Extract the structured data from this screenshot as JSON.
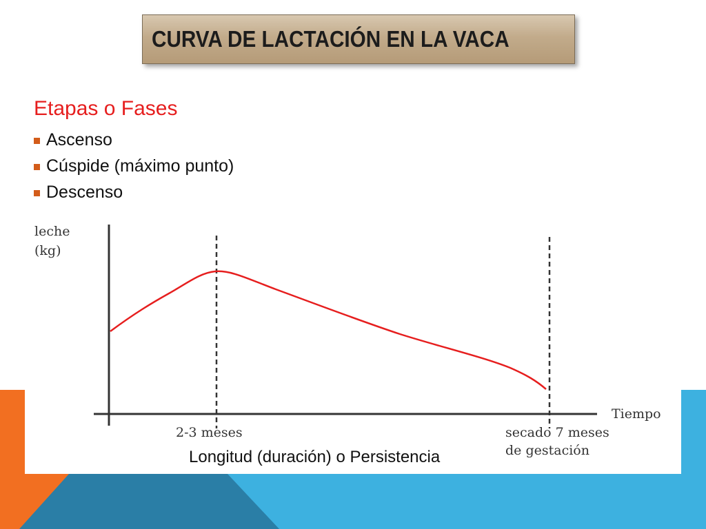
{
  "colors": {
    "title_box": "#c2ab8b",
    "heading": "#e61e1e",
    "bullet": "#d35c1a",
    "curve": "#e61e1e",
    "deco_orange": "#f26f21",
    "deco_blue": "#3db1e0",
    "deco_dark_blue": "#2a7ea6"
  },
  "slide": {
    "title": "CURVA DE LACTACIÓN EN LA VACA",
    "section_heading": "Etapas o Fases",
    "bullets": [
      "Ascenso",
      "Cúspide (máximo punto)",
      "Descenso"
    ],
    "caption": "Longitud (duración) o Persistencia"
  },
  "chart_data": {
    "type": "line",
    "ylabel": [
      "leche",
      "(kg)"
    ],
    "xlabel": "Tiempo",
    "markers": [
      {
        "label": [
          "2-3 meses"
        ]
      },
      {
        "label": [
          "secado 7 meses",
          "de gestación"
        ]
      }
    ],
    "grid": false
  }
}
